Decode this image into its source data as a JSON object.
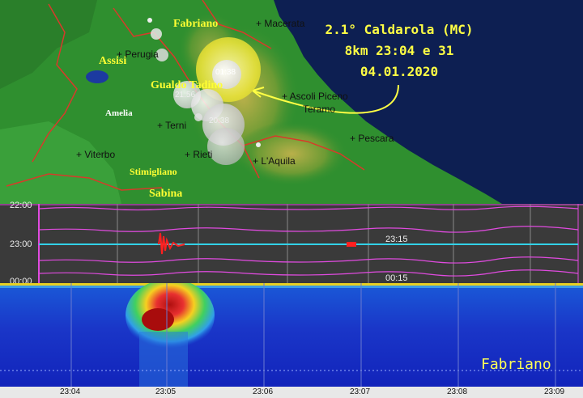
{
  "map": {
    "regions": [
      {
        "id": "fabriano",
        "label": "Fabriano",
        "size": 14
      },
      {
        "id": "assisi",
        "label": "Assisi",
        "size": 14
      },
      {
        "id": "gualdo",
        "label": "Gualdo Tadino",
        "size": 14
      },
      {
        "id": "amelia",
        "label": "Amelia",
        "size": 11
      },
      {
        "id": "stimigliano",
        "label": "Stimigliano",
        "size": 12
      },
      {
        "id": "sabina",
        "label": "Sabina",
        "size": 14
      }
    ],
    "towns": [
      {
        "id": "macerata",
        "label": "+ Macerata"
      },
      {
        "id": "perugia",
        "label": "+ Perugia"
      },
      {
        "id": "ascoli",
        "label": "+ Ascoli Piceno"
      },
      {
        "id": "teramo",
        "label": "Teramo"
      },
      {
        "id": "terni",
        "label": "+ Terni"
      },
      {
        "id": "pescara",
        "label": "+ Pescara"
      },
      {
        "id": "viterbo",
        "label": "+ Viterbo"
      },
      {
        "id": "rieti",
        "label": "+ Rieti"
      },
      {
        "id": "aquila",
        "label": "+ L'Aquila"
      }
    ],
    "highlight_quake_label": "01:38",
    "quake_label_2": "21:56",
    "quake_label_3": "20:38"
  },
  "headline": {
    "line1": "2.1° Caldarola (MC)",
    "line2": "8km 23:04 e 31",
    "line3": "04.01.2020"
  },
  "seismogram": {
    "row_labels": [
      "22:00",
      "23:00",
      "00:00"
    ],
    "marker_top": "23:15",
    "marker_bottom": "00:15"
  },
  "spectrogram": {
    "station": "Fabriano",
    "ticks": [
      "23:04",
      "23:05",
      "23:06",
      "23:07",
      "23:08",
      "23:09"
    ]
  },
  "colors": {
    "sea": "#0d1f52",
    "land": "#2f8f2f",
    "label": "#ffff33",
    "trace": "#e14be0",
    "trace_center": "#32d2e8"
  }
}
